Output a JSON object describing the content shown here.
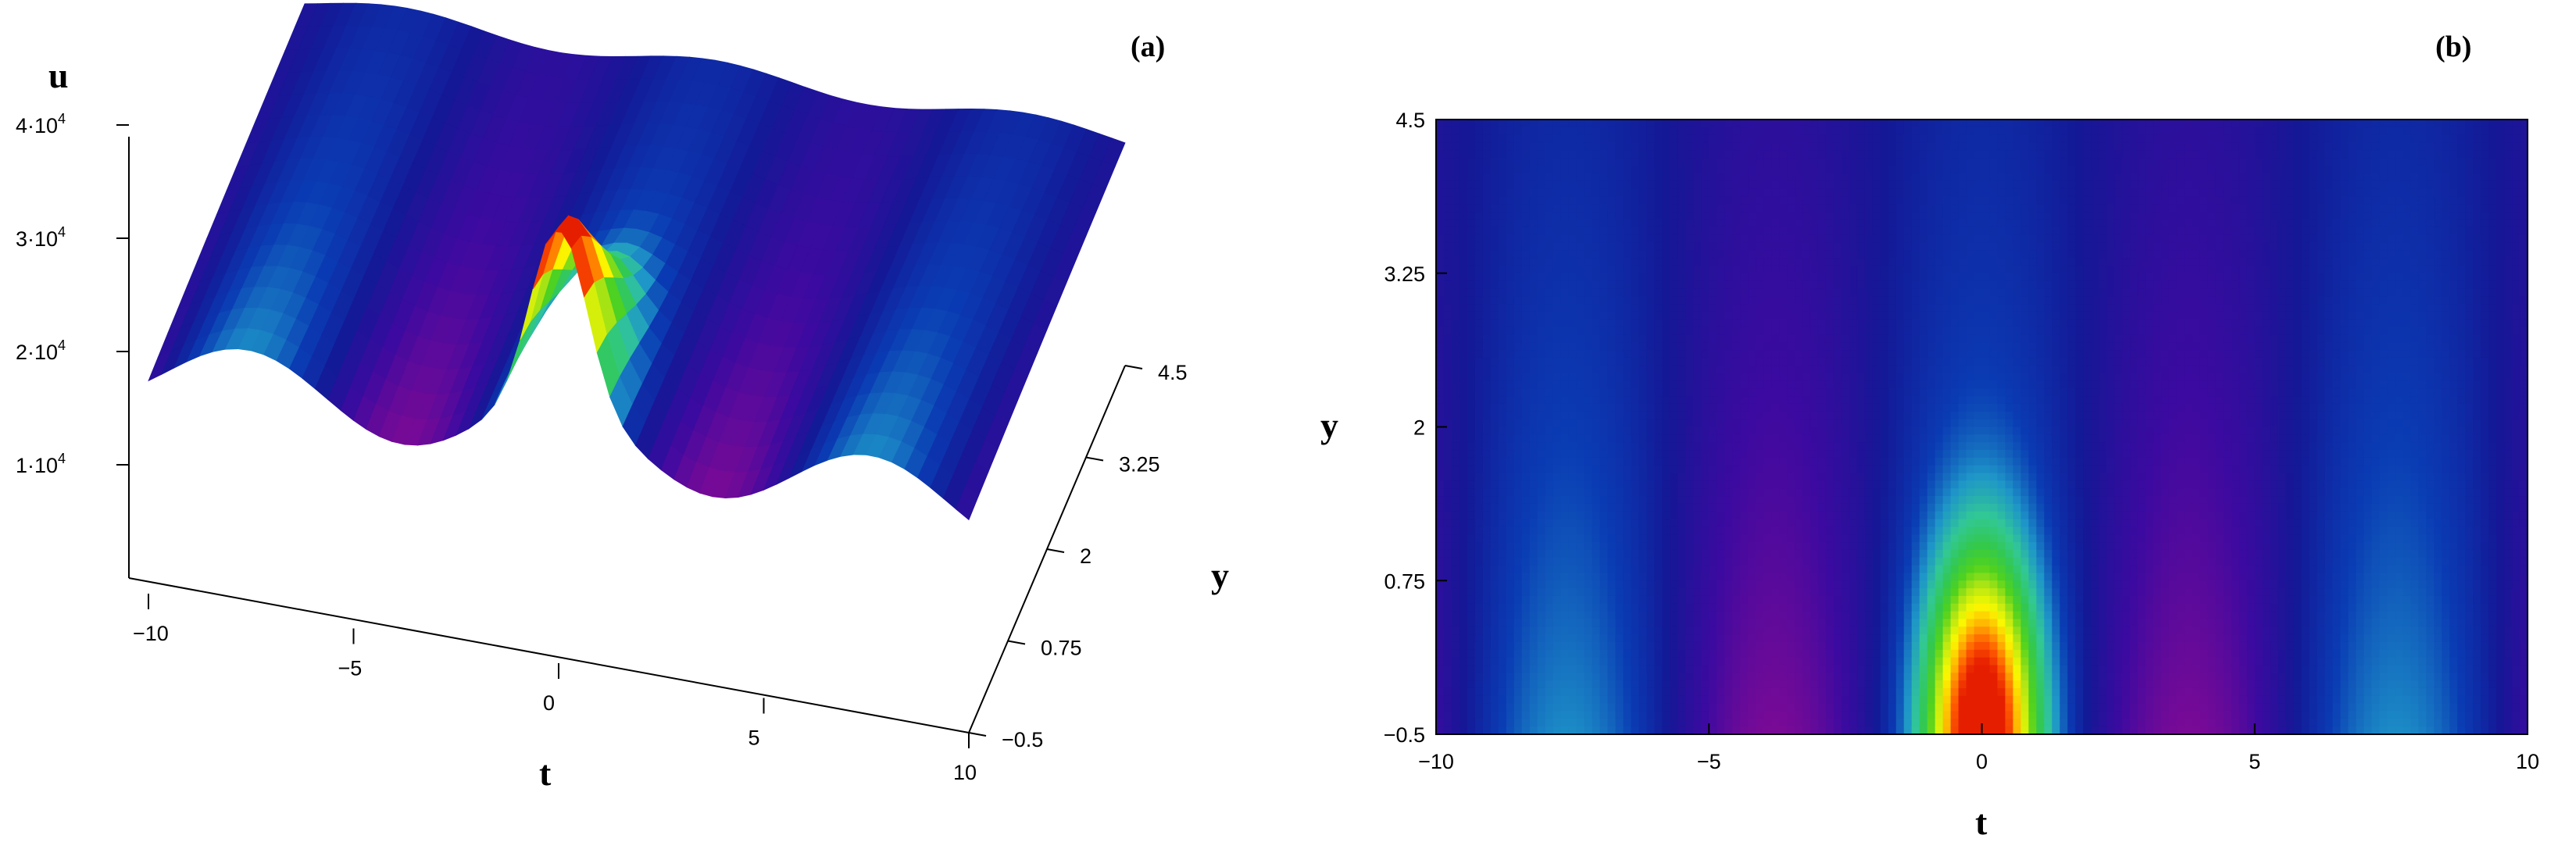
{
  "chart_data": [
    {
      "panel": "(a)",
      "type": "surface3d",
      "xlabel": "t",
      "ylabel": "y",
      "zlabel": "u",
      "x_range": [
        -10,
        10
      ],
      "y_range": [
        -0.5,
        4.5
      ],
      "z_range": [
        0,
        40000
      ],
      "x_ticks": [
        "−10",
        "−5",
        "0",
        "5",
        "10"
      ],
      "x_tick_values": [
        -10,
        -5,
        0,
        5,
        10
      ],
      "y_ticks": [
        "−0.5",
        "0.75",
        "2",
        "3.25",
        "4.5"
      ],
      "y_tick_values": [
        -0.5,
        0.75,
        2,
        3.25,
        4.5
      ],
      "z_ticks": [
        {
          "base": "1·10",
          "exp": "4",
          "value": 10000
        },
        {
          "base": "2·10",
          "exp": "4",
          "value": 20000
        },
        {
          "base": "3·10",
          "exp": "4",
          "value": 30000
        },
        {
          "base": "4·10",
          "exp": "4",
          "value": 40000
        }
      ],
      "surface": {
        "baseline": 20000,
        "periodic_amplitude": 3000,
        "period": 7.6,
        "peak_t": 0,
        "peak_y": -0.5,
        "peak_value": 35500,
        "colormap": [
          "#7a0a96",
          "#3c0aa0",
          "#141896",
          "#0a3cb4",
          "#1e96c8",
          "#32c896",
          "#32c850",
          "#50d21e",
          "#b4e614",
          "#fafa00",
          "#ffb400",
          "#ff5a00",
          "#e61e00"
        ]
      }
    },
    {
      "panel": "(b)",
      "type": "heatmap",
      "xlabel": "t",
      "ylabel": "y",
      "x_range": [
        -10,
        10
      ],
      "y_range": [
        -0.5,
        4.5
      ],
      "x_ticks": [
        "−10",
        "−5",
        "0",
        "5",
        "10"
      ],
      "x_tick_values": [
        -10,
        -5,
        0,
        5,
        10
      ],
      "y_ticks": [
        "−0.5",
        "0.75",
        "2",
        "3.25",
        "4.5"
      ],
      "y_tick_values": [
        -0.5,
        0.75,
        2,
        3.25,
        4.5
      ]
    }
  ]
}
